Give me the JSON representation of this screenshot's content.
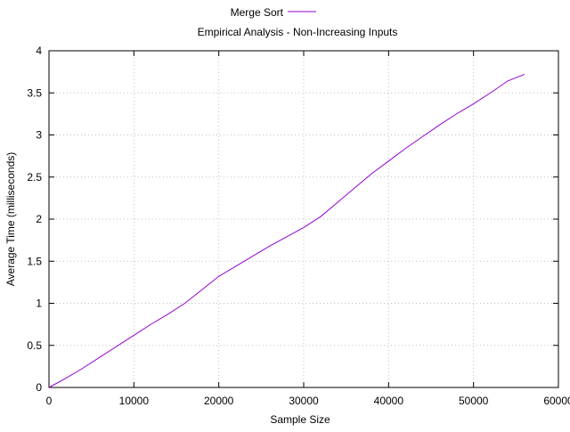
{
  "chart_data": {
    "type": "line",
    "title": "Empirical Analysis - Non-Increasing Inputs",
    "xlabel": "Sample Size",
    "ylabel": "Average Time (milliseconds)",
    "xlim": [
      0,
      60000
    ],
    "ylim": [
      0,
      4
    ],
    "xticks": [
      0,
      10000,
      20000,
      30000,
      40000,
      50000,
      60000
    ],
    "yticks": [
      0,
      0.5,
      1,
      1.5,
      2,
      2.5,
      3,
      3.5,
      4
    ],
    "xtick_labels": [
      "0",
      "10000",
      "20000",
      "30000",
      "40000",
      "50000",
      "60000"
    ],
    "ytick_labels": [
      "0",
      "0.5",
      "1",
      "1.5",
      "2",
      "2.5",
      "3",
      "3.5",
      "4"
    ],
    "grid": true,
    "legend_position": "top-center",
    "series": [
      {
        "name": "Merge Sort",
        "color": "#9400d3",
        "x": [
          0,
          2000,
          4000,
          6000,
          8000,
          10000,
          12000,
          14000,
          16000,
          18000,
          20000,
          22000,
          24000,
          26000,
          28000,
          30000,
          32000,
          34000,
          36000,
          38000,
          40000,
          42000,
          44000,
          46000,
          48000,
          50000,
          52000,
          54000,
          56000
        ],
        "y": [
          0,
          0.11,
          0.23,
          0.36,
          0.49,
          0.62,
          0.75,
          0.87,
          1.0,
          1.16,
          1.32,
          1.44,
          1.56,
          1.68,
          1.79,
          1.9,
          2.03,
          2.2,
          2.37,
          2.54,
          2.69,
          2.84,
          2.98,
          3.12,
          3.25,
          3.37,
          3.5,
          3.64,
          3.72
        ]
      }
    ]
  }
}
